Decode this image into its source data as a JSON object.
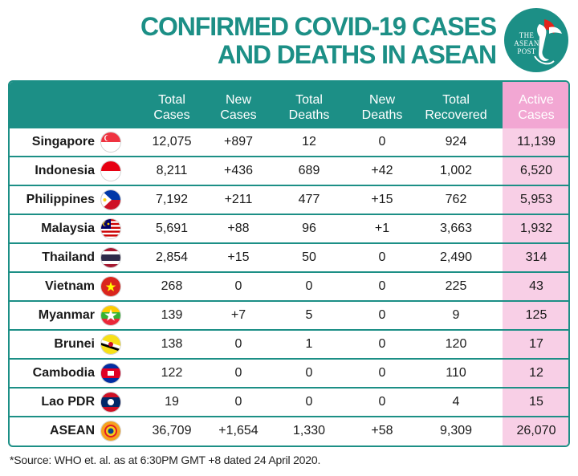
{
  "title": {
    "line1": "CONFIRMED COVID-19 CASES",
    "line2": "AND DEATHS IN ASEAN"
  },
  "logo": {
    "line1": "THE",
    "line2": "ASEAN",
    "line3": "POST",
    "icon": "bird-emblem-icon"
  },
  "colors": {
    "teal": "#1c8f86",
    "active_header": "#f2a7d3",
    "active_column": "#f8cfe6"
  },
  "chart_data": {
    "type": "table",
    "title": "CONFIRMED COVID-19 CASES AND DEATHS IN ASEAN",
    "columns": [
      {
        "line1": "Total",
        "line2": "Cases"
      },
      {
        "line1": "New",
        "line2": "Cases"
      },
      {
        "line1": "Total",
        "line2": "Deaths"
      },
      {
        "line1": "New",
        "line2": "Deaths"
      },
      {
        "line1": "Total",
        "line2": "Recovered"
      },
      {
        "line1": "Active",
        "line2": "Cases"
      }
    ],
    "rows": [
      {
        "country": "Singapore",
        "flag": "singapore-flag-icon",
        "values": [
          "12,075",
          "+897",
          "12",
          "0",
          "924",
          "11,139"
        ]
      },
      {
        "country": "Indonesia",
        "flag": "indonesia-flag-icon",
        "values": [
          "8,211",
          "+436",
          "689",
          "+42",
          "1,002",
          "6,520"
        ]
      },
      {
        "country": "Philippines",
        "flag": "philippines-flag-icon",
        "values": [
          "7,192",
          "+211",
          "477",
          "+15",
          "762",
          "5,953"
        ]
      },
      {
        "country": "Malaysia",
        "flag": "malaysia-flag-icon",
        "values": [
          "5,691",
          "+88",
          "96",
          "+1",
          "3,663",
          "1,932"
        ]
      },
      {
        "country": "Thailand",
        "flag": "thailand-flag-icon",
        "values": [
          "2,854",
          "+15",
          "50",
          "0",
          "2,490",
          "314"
        ]
      },
      {
        "country": "Vietnam",
        "flag": "vietnam-flag-icon",
        "values": [
          "268",
          "0",
          "0",
          "0",
          "225",
          "43"
        ]
      },
      {
        "country": "Myanmar",
        "flag": "myanmar-flag-icon",
        "values": [
          "139",
          "+7",
          "5",
          "0",
          "9",
          "125"
        ]
      },
      {
        "country": "Brunei",
        "flag": "brunei-flag-icon",
        "values": [
          "138",
          "0",
          "1",
          "0",
          "120",
          "17"
        ]
      },
      {
        "country": "Cambodia",
        "flag": "cambodia-flag-icon",
        "values": [
          "122",
          "0",
          "0",
          "0",
          "110",
          "12"
        ]
      },
      {
        "country": "Lao PDR",
        "flag": "laos-flag-icon",
        "values": [
          "19",
          "0",
          "0",
          "0",
          "4",
          "15"
        ]
      },
      {
        "country": "ASEAN",
        "flag": "asean-emblem-icon",
        "values": [
          "36,709",
          "+1,654",
          "1,330",
          "+58",
          "9,309",
          "26,070"
        ]
      }
    ]
  },
  "source": "*Source: WHO et. al. as at 6:30PM GMT +8 dated 24 April 2020."
}
